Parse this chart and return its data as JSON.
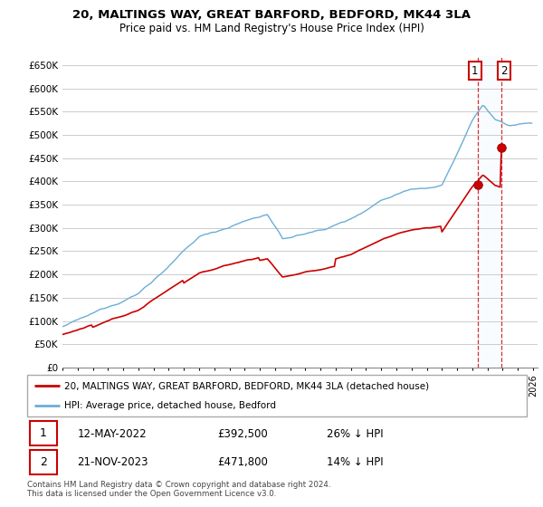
{
  "title1": "20, MALTINGS WAY, GREAT BARFORD, BEDFORD, MK44 3LA",
  "title2": "Price paid vs. HM Land Registry's House Price Index (HPI)",
  "ylim": [
    0,
    670000
  ],
  "yticks": [
    0,
    50000,
    100000,
    150000,
    200000,
    250000,
    300000,
    350000,
    400000,
    450000,
    500000,
    550000,
    600000,
    650000
  ],
  "ytick_labels": [
    "£0",
    "£50K",
    "£100K",
    "£150K",
    "£200K",
    "£250K",
    "£300K",
    "£350K",
    "£400K",
    "£450K",
    "£500K",
    "£550K",
    "£600K",
    "£650K"
  ],
  "hpi_color": "#6baed6",
  "price_color": "#cc0000",
  "sale1_year": 2022.37,
  "sale1_price": 392500,
  "sale1_label": "£392,500",
  "sale1_pct": "26% ↓ HPI",
  "sale1_date": "12-MAY-2022",
  "sale2_year": 2023.9,
  "sale2_price": 471800,
  "sale2_label": "£471,800",
  "sale2_pct": "14% ↓ HPI",
  "sale2_date": "21-NOV-2023",
  "legend_line1": "20, MALTINGS WAY, GREAT BARFORD, BEDFORD, MK44 3LA (detached house)",
  "legend_line2": "HPI: Average price, detached house, Bedford",
  "footer": "Contains HM Land Registry data © Crown copyright and database right 2024.\nThis data is licensed under the Open Government Licence v3.0.",
  "grid_color": "#cccccc",
  "shade_color": "#ddeeff"
}
